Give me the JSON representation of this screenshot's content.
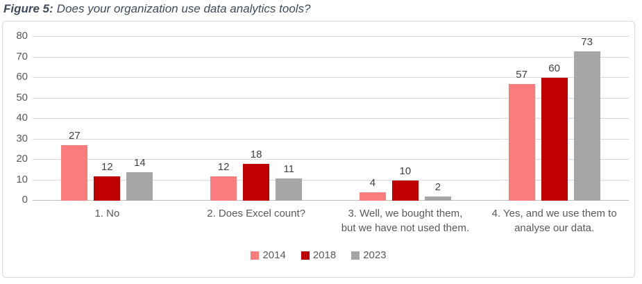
{
  "figure": {
    "label": "Figure 5:",
    "caption": "Does your organization use data analytics tools?"
  },
  "colors": {
    "title_text": "#3F4A5A",
    "axis_text": "#595959",
    "value_text": "#404040",
    "gridline": "#D9D9D9",
    "axis_line": "#BFBFBF",
    "frame_border": "#D9D9D9",
    "series_2014": "#FB7C7C",
    "series_2018": "#C00000",
    "series_2023": "#A6A6A6"
  },
  "chart_data": {
    "type": "bar",
    "title": "Figure 5: Does your organization use data analytics tools?",
    "categories": [
      "1. No",
      "2. Does Excel count?",
      "3. Well, we bought them,\nbut we have not used them.",
      "4. Yes, and we use them to\nanalyse our data."
    ],
    "series": [
      {
        "name": "2014",
        "color": "#FB7C7C",
        "values": [
          27,
          12,
          4,
          57
        ]
      },
      {
        "name": "2018",
        "color": "#C00000",
        "values": [
          12,
          18,
          10,
          60
        ]
      },
      {
        "name": "2023",
        "color": "#A6A6A6",
        "values": [
          14,
          11,
          2,
          73
        ]
      }
    ],
    "xlabel": "",
    "ylabel": "",
    "ylim": [
      0,
      80
    ],
    "yticks": [
      0,
      10,
      20,
      30,
      40,
      50,
      60,
      70,
      80
    ],
    "grid": true,
    "data_labels": true,
    "legend_position": "bottom"
  }
}
